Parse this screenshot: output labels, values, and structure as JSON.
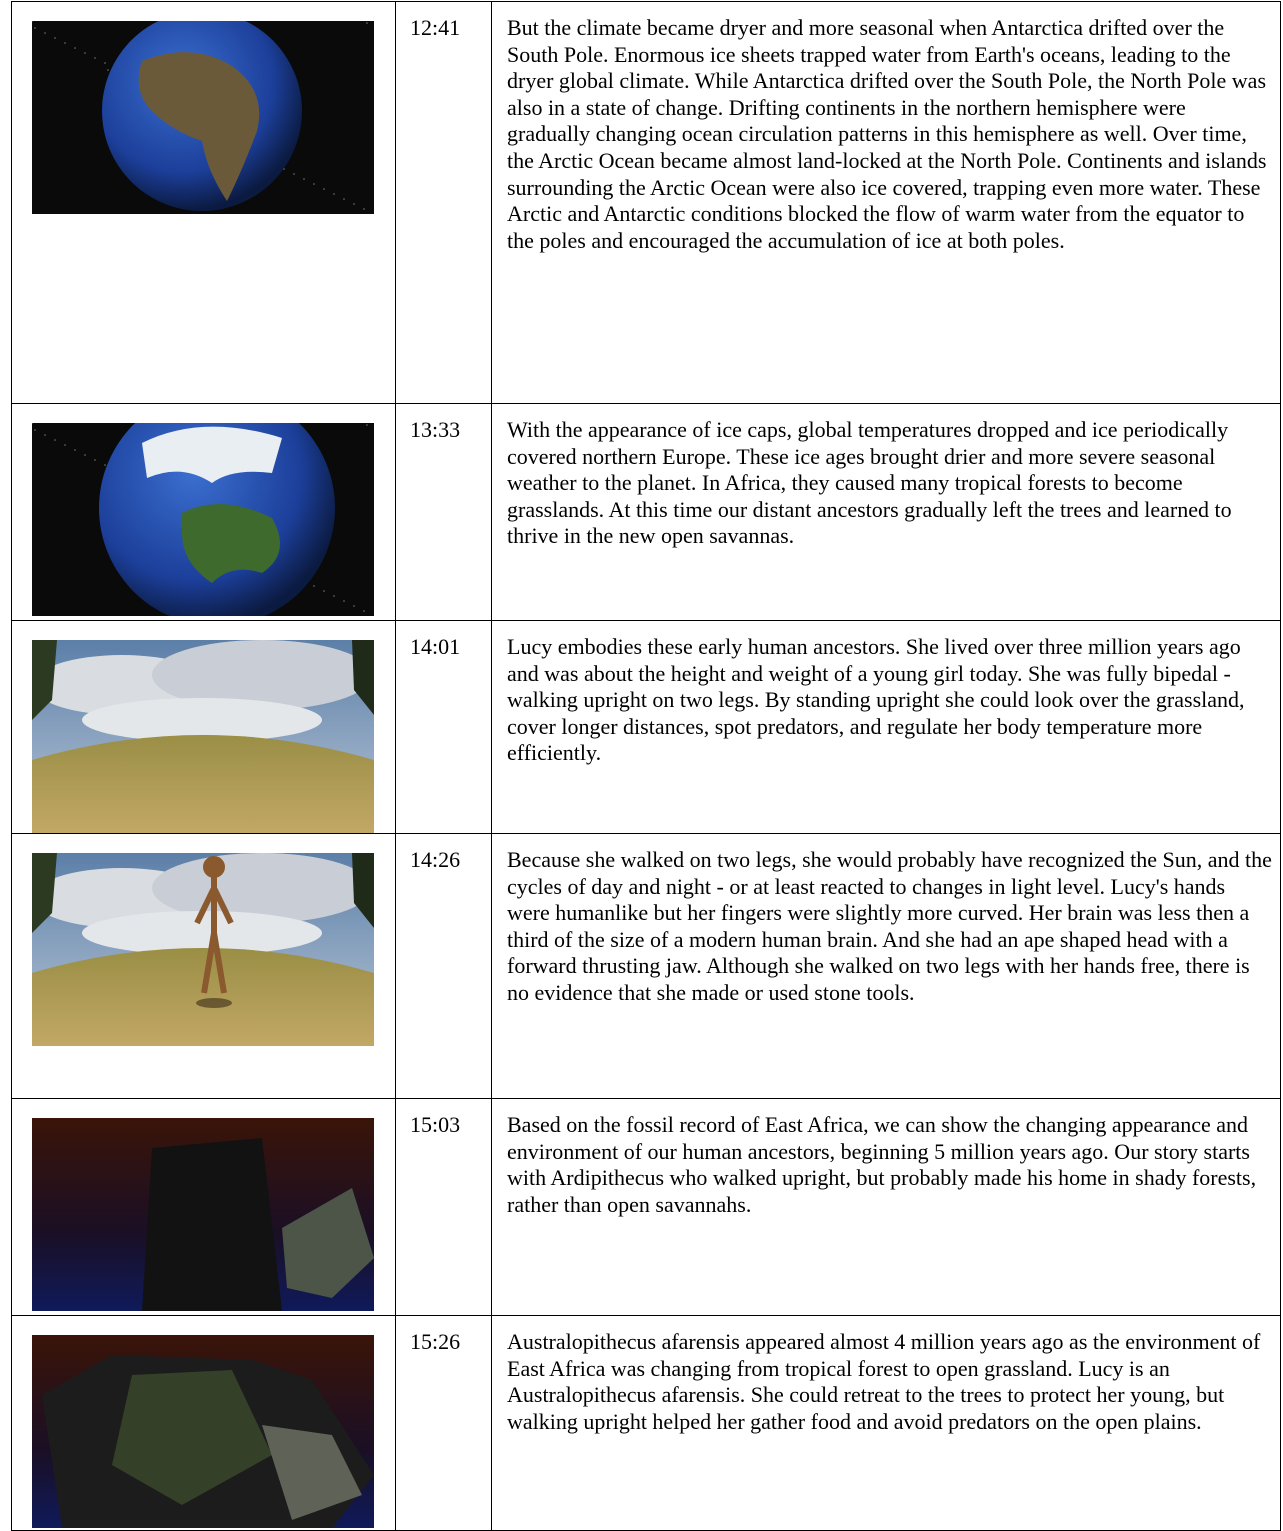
{
  "table": {
    "rows": [
      {
        "time": "12:41",
        "text": "But the climate became dryer and more seasonal when Antarctica drifted over the South Pole. Enormous ice sheets trapped water from Earth's oceans, leading to the dryer global climate. While Antarctica drifted over the South Pole, the North Pole was also in a state of change. Drifting continents in the northern hemisphere were gradually changing ocean circulation patterns in this hemisphere as well. Over time, the Arctic Ocean became almost land-locked at the North Pole. Continents and islands surrounding the Arctic Ocean were also ice covered, trapping even more water. These Arctic and Antarctic conditions blocked the flow of warm water from the equator to the poles and encouraged the accumulation of ice at both poles."
      },
      {
        "time": "13:33",
        "text": "With the appearance of ice caps, global temperatures dropped and ice periodically covered northern Europe. These ice ages brought drier and more severe seasonal weather to the planet. In Africa, they caused many tropical forests to become grasslands. At this time our distant ancestors gradually left the trees and learned to thrive in the new open savannas."
      },
      {
        "time": "14:01",
        "text": "Lucy embodies these early human ancestors. She lived over three million years ago and was about the height and weight of a young girl today. She was fully bipedal - walking upright on two legs. By standing upright she could look over the grassland, cover longer distances, spot predators, and regulate her body temperature more efficiently."
      },
      {
        "time": "14:26",
        "text": "Because she walked on two legs, she would probably have recognized the Sun, and the cycles of day and night - or at least reacted to changes in light level. Lucy's hands were humanlike but her fingers were slightly more curved. Her brain was less then a third of the size of a modern human brain. And she had an ape shaped head with a forward thrusting jaw. Although she walked on two legs with her hands free, there is no evidence that she made or used stone tools."
      },
      {
        "time": "15:03",
        "text": "Based on the fossil record of East Africa, we can show the changing appearance and environment of our human ancestors, beginning 5 million years ago. Our story starts with Ardipithecus who walked upright, but probably made his home in shady forests, rather than open savannahs."
      },
      {
        "time": "15:26",
        "text": "Australopithecus afarensis appeared almost 4 million years ago as the environment of East Africa was changing from tropical forest to open grassland. Lucy is an Australopithecus afarensis. She could retreat to the trees to protect her young, but walking upright helped her gather food and avoid predators on the open plains."
      }
    ]
  }
}
